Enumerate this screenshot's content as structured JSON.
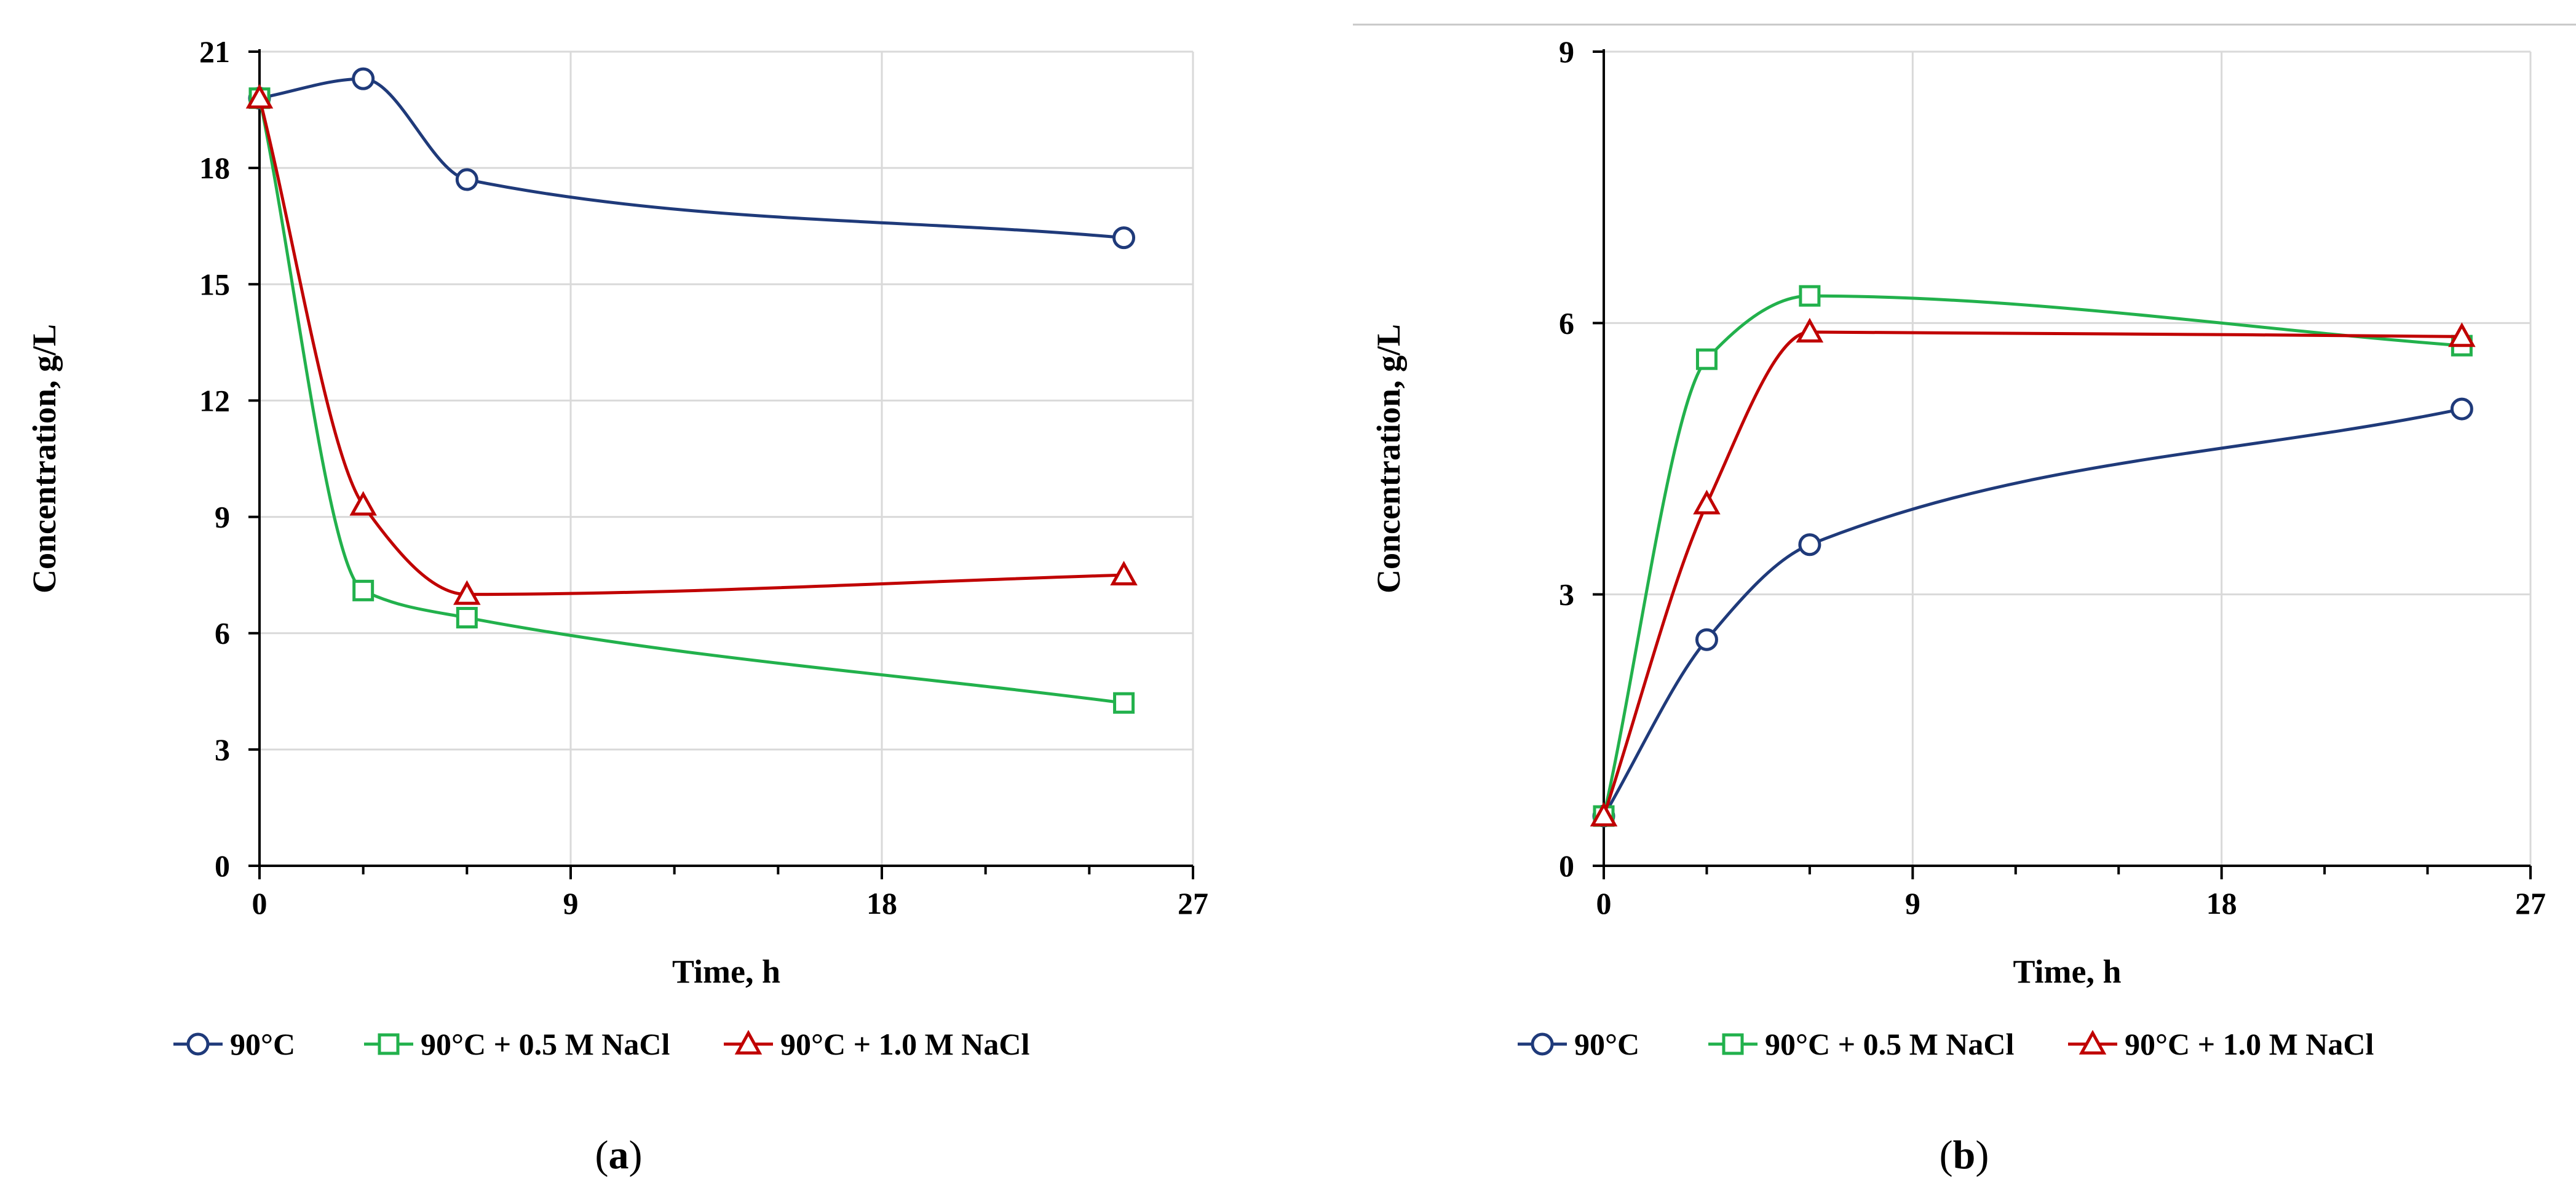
{
  "chart_data": [
    {
      "type": "line",
      "title": "",
      "caption": {
        "open": "(",
        "letter": "a",
        "close": ")"
      },
      "xlabel": "Time, h",
      "ylabel": "Concentration, g/L",
      "xlim": [
        0,
        27
      ],
      "ylim": [
        0,
        21
      ],
      "xticks": [
        0,
        9,
        18,
        27
      ],
      "yticks": [
        0,
        3,
        6,
        9,
        12,
        15,
        18,
        21
      ],
      "x_minor_step": 3,
      "grid": true,
      "legend": "bottom",
      "x": [
        0,
        3,
        6,
        25
      ],
      "series": [
        {
          "name": "90°C",
          "values": [
            19.8,
            20.3,
            17.7,
            16.2
          ],
          "color": "#1f3a7a",
          "marker": "circle"
        },
        {
          "name": "90°C + 0.5 M NaCl",
          "values": [
            19.8,
            7.1,
            6.4,
            4.2
          ],
          "color": "#22b14c",
          "marker": "square"
        },
        {
          "name": "90°C + 1.0 M NaCl",
          "values": [
            19.8,
            9.3,
            7.0,
            7.5
          ],
          "color": "#c00000",
          "marker": "triangle"
        }
      ]
    },
    {
      "type": "line",
      "title": "",
      "caption": {
        "open": "(",
        "letter": "b",
        "close": ")"
      },
      "xlabel": "Time, h",
      "ylabel": "Concentration, g/L",
      "xlim": [
        0,
        27
      ],
      "ylim": [
        0,
        9
      ],
      "xticks": [
        0,
        9,
        18,
        27
      ],
      "yticks": [
        0,
        3,
        6,
        9
      ],
      "x_minor_step": 3,
      "grid": true,
      "legend": "bottom",
      "x": [
        0,
        3,
        6,
        25
      ],
      "series": [
        {
          "name": "90°C",
          "values": [
            0.55,
            2.5,
            3.55,
            5.05
          ],
          "color": "#1f3a7a",
          "marker": "circle"
        },
        {
          "name": "90°C + 0.5 M NaCl",
          "values": [
            0.55,
            5.6,
            6.3,
            5.75
          ],
          "color": "#22b14c",
          "marker": "square"
        },
        {
          "name": "90°C + 1.0 M NaCl",
          "values": [
            0.55,
            4.0,
            5.9,
            5.85
          ],
          "color": "#c00000",
          "marker": "triangle"
        }
      ]
    }
  ]
}
